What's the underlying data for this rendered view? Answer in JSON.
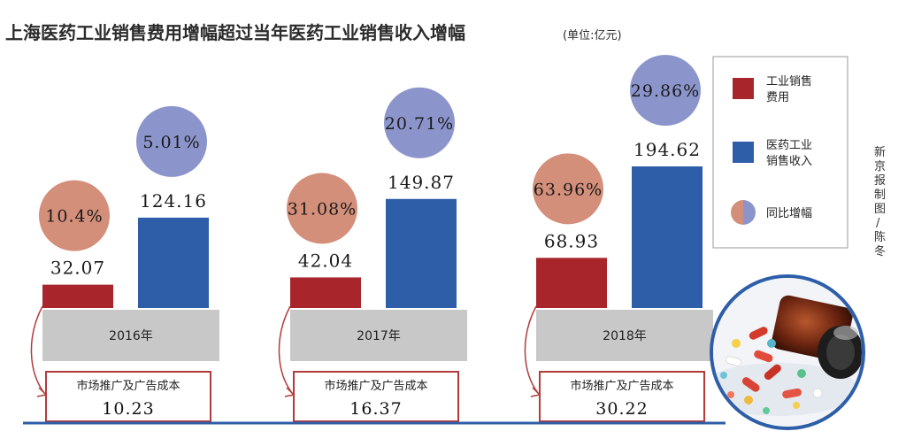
{
  "header": {
    "title": "上海医药工业销售费用增幅超过当年医药工业销售收入增幅",
    "unit": "(单位:亿元)"
  },
  "credit": "新京报制图/陈冬",
  "colors": {
    "expense_bar": "#a8262b",
    "revenue_bar": "#2e5ea8",
    "expense_circle": "#d48f7a",
    "revenue_circle": "#8b95cc",
    "year_band": "#c8c8c8",
    "box_border": "#b33a3a",
    "baseline": "#2e5ea8"
  },
  "legend": [
    {
      "label_line1": "工业销售",
      "label_line2": "费用",
      "swatch": "square-red"
    },
    {
      "label_line1": "医药工业",
      "label_line2": "销售收入",
      "swatch": "square-blue"
    },
    {
      "label_line1": "同比增幅",
      "label_line2": "",
      "swatch": "circle-split"
    }
  ],
  "illustration": "pill-bottle-image",
  "chart_data": {
    "type": "bar",
    "title": "上海医药工业销售费用增幅超过当年医药工业销售收入增幅",
    "unit": "(单位:亿元)",
    "categories": [
      "2016年",
      "2017年",
      "2018年"
    ],
    "series": [
      {
        "name": "工业销售费用",
        "values": [
          32.07,
          42.04,
          68.93
        ],
        "labels": [
          "32.07",
          "42.04",
          "68.93"
        ],
        "growth_labels": [
          "10.4%",
          "31.08%",
          "63.96%"
        ]
      },
      {
        "name": "医药工业销售收入",
        "values": [
          124.16,
          149.87,
          194.62
        ],
        "labels": [
          "124.16",
          "149.87",
          "194.62"
        ],
        "growth_labels": [
          "5.01%",
          "20.71%",
          "29.86%"
        ]
      }
    ],
    "growth_label": "同比增幅",
    "sub_metric": {
      "name": "市场推广及广告成本",
      "values": [
        10.23,
        16.37,
        30.22
      ],
      "labels": [
        "10.23",
        "16.37",
        "30.22"
      ]
    },
    "ylim": [
      0,
      200
    ],
    "grid": false,
    "legend_position": "right"
  }
}
